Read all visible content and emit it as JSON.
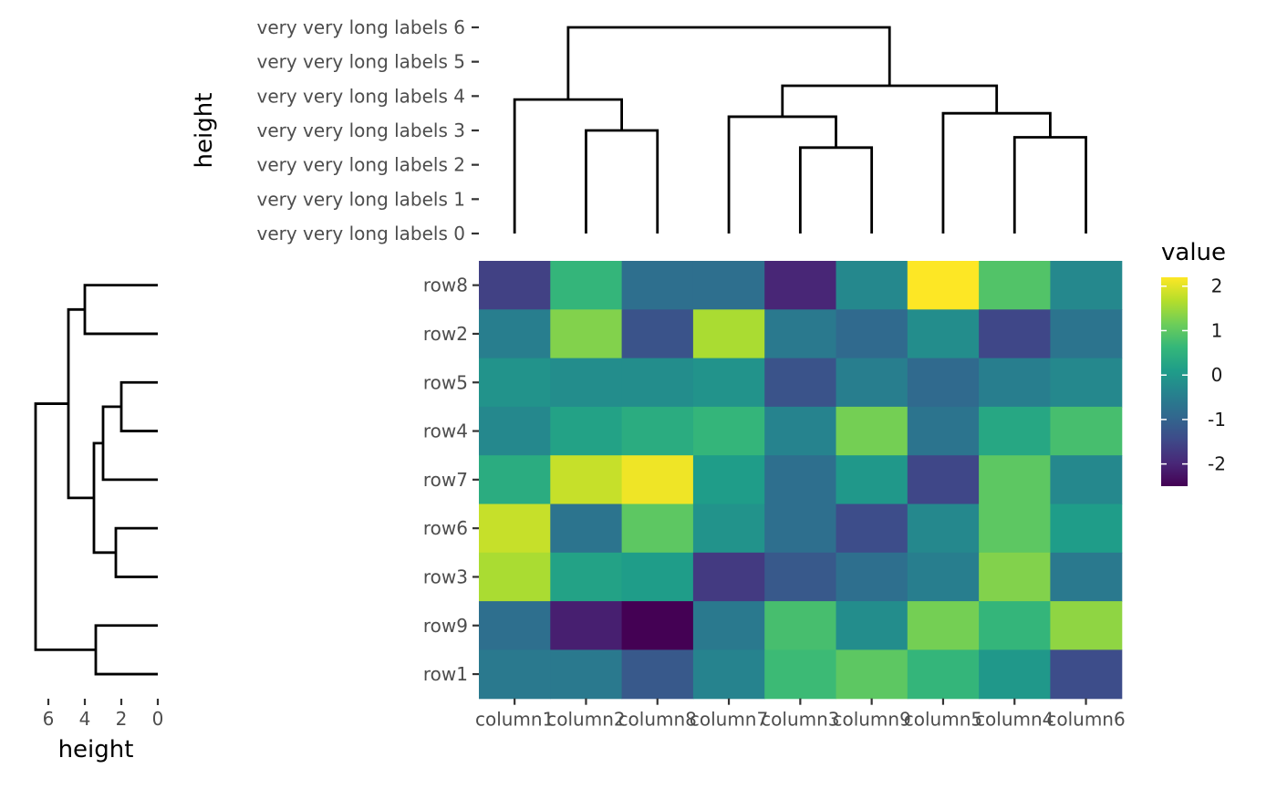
{
  "chart_data": {
    "type": "heatmap",
    "rows": [
      "row8",
      "row2",
      "row5",
      "row4",
      "row7",
      "row6",
      "row3",
      "row9",
      "row1"
    ],
    "columns": [
      "column1",
      "column2",
      "column8",
      "column7",
      "column3",
      "column9",
      "column5",
      "column4",
      "column6"
    ],
    "values": [
      [
        -1.6,
        0.6,
        -0.8,
        -0.8,
        -2.0,
        -0.3,
        2.2,
        0.9,
        -0.3
      ],
      [
        -0.5,
        1.3,
        -1.3,
        1.6,
        -0.6,
        -0.9,
        -0.2,
        -1.5,
        -0.7
      ],
      [
        -0.1,
        -0.2,
        -0.2,
        -0.1,
        -1.3,
        -0.5,
        -0.9,
        -0.5,
        -0.3
      ],
      [
        -0.3,
        0.2,
        0.4,
        0.6,
        -0.4,
        1.2,
        -0.7,
        0.3,
        0.8
      ],
      [
        0.4,
        1.8,
        2.1,
        0.1,
        -0.8,
        0.0,
        -1.5,
        1.0,
        -0.3
      ],
      [
        1.8,
        -0.7,
        1.0,
        -0.1,
        -0.8,
        -1.4,
        -0.3,
        1.0,
        0.1
      ],
      [
        1.6,
        0.2,
        0.1,
        -1.7,
        -1.2,
        -0.8,
        -0.5,
        1.3,
        -0.6
      ],
      [
        -0.8,
        -2.1,
        -2.5,
        -0.6,
        0.8,
        -0.2,
        1.2,
        0.6,
        1.4
      ],
      [
        -0.6,
        -0.6,
        -1.2,
        -0.4,
        0.7,
        1.0,
        0.6,
        0.0,
        -1.4
      ]
    ],
    "fill_label": "value",
    "scale": {
      "name": "viridis",
      "limits": [
        -2.5,
        2.2
      ],
      "breaks": [
        2,
        1,
        0,
        -1,
        -2
      ],
      "break_labels": [
        "2",
        "1",
        "0",
        "-1",
        "-2"
      ]
    },
    "x_labels": [
      "column1",
      "column2",
      "column8",
      "column7",
      "column3",
      "column9",
      "column5",
      "column4",
      "column6"
    ],
    "y_labels": [
      "row8",
      "row2",
      "row5",
      "row4",
      "row7",
      "row6",
      "row3",
      "row9",
      "row1"
    ],
    "column_dendrogram": {
      "axis_title": "height",
      "axis_range": [
        0,
        6
      ],
      "tick_values": [
        6,
        5,
        4,
        3,
        2,
        1,
        0
      ],
      "tick_labels": [
        "very very long labels 6",
        "very very long labels 5",
        "very very long labels 4",
        "very very long labels 3",
        "very very long labels 2",
        "very very long labels 1",
        "very very long labels 0"
      ],
      "merges": [
        {
          "left": "column2",
          "right": "column8",
          "height": 3.0
        },
        {
          "left": "column1",
          "right": "column2+column8",
          "height": 3.9
        },
        {
          "left": "column3",
          "right": "column9",
          "height": 2.5
        },
        {
          "left": "column7",
          "right": "column3+column9",
          "height": 3.4
        },
        {
          "left": "column4",
          "right": "column6",
          "height": 2.8
        },
        {
          "left": "column5",
          "right": "column4+column6",
          "height": 3.5
        },
        {
          "left": "column7+column3+column9",
          "right": "column5+column4+column6",
          "height": 4.3
        },
        {
          "left": "column1+column2+column8",
          "right": "column7+column3+column9+column5+column4+column6",
          "height": 6.0
        }
      ]
    },
    "row_dendrogram": {
      "axis_title": "height",
      "axis_range": [
        0,
        6.7
      ],
      "tick_values": [
        6,
        4,
        2,
        0
      ],
      "tick_labels": [
        "6",
        "4",
        "2",
        "0"
      ],
      "merges": [
        {
          "left": "row8",
          "right": "row2",
          "height": 4.0
        },
        {
          "left": "row5",
          "right": "row4",
          "height": 2.0
        },
        {
          "left": "row5+row4",
          "right": "row7",
          "height": 3.0
        },
        {
          "left": "row6",
          "right": "row3",
          "height": 2.3
        },
        {
          "left": "row5+row4+row7",
          "right": "row6+row3",
          "height": 3.5
        },
        {
          "left": "row8+row2",
          "right": "row5+row4+row7+row6+row3",
          "height": 4.9
        },
        {
          "left": "row9",
          "right": "row1",
          "height": 3.4
        },
        {
          "left": "row8+row2+row5+row4+row7+row6+row3",
          "right": "row9+row1",
          "height": 6.7
        }
      ]
    }
  }
}
